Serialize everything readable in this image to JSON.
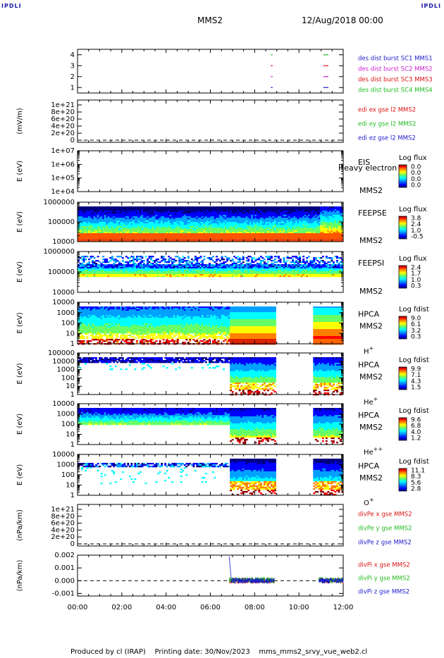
{
  "header": {
    "corner_label": "IPDLI",
    "spacecraft": "MMS2",
    "date_time": "12/Aug/2018 00:00"
  },
  "footer": {
    "producer": "Produced by cl (IRAP)",
    "printing_date": "Printing date: 30/Nov/2023",
    "script_name": "mms_mms2_srvy_vue_web2.cl"
  },
  "x_ticks": [
    "00:00",
    "02:00",
    "04:00",
    "06:00",
    "08:00",
    "10:00",
    "12:00"
  ],
  "colors": {
    "blue": "#1a1acc",
    "magenta": "#cc22cc",
    "red": "#dd1111",
    "green": "#22bb22",
    "colormap": [
      "#00007f",
      "#0000ff",
      "#00a0ff",
      "#00ffff",
      "#66ff66",
      "#ffff00",
      "#ff8000",
      "#ff0000",
      "#8b0000"
    ]
  },
  "chart_data": [
    {
      "type": "line",
      "ylabel": "",
      "yticks": [
        "1",
        "2",
        "3",
        "4"
      ],
      "ylim": [
        0.5,
        4.5
      ],
      "legend": [
        "des dist burst SC1 MMS1",
        "des dist burst SC2 MMS2",
        "des dist burst SC3 MMS3",
        "des dist burst SC4 MMS4"
      ],
      "burst_intervals": [
        [
          8.73,
          8.78
        ],
        [
          11.1,
          11.3
        ]
      ]
    },
    {
      "type": "line",
      "ylabel": "(mV/m)",
      "yticks": [
        "0",
        "2e+20",
        "4e+20",
        "6e+20",
        "8e+20",
        "1e+21"
      ],
      "ylim": [
        0,
        1.1e+21
      ],
      "legend": [
        "edi ex gse l2 MMS2",
        "edi ey gse l2 MMS2",
        "edi ez gse l2 MMS2"
      ]
    },
    {
      "type": "heatmap",
      "ylabel": "E (eV)",
      "yticks": [
        "1e+04",
        "1e+05",
        "1e+06",
        "1e+07"
      ],
      "instrument": "EIS",
      "overlay_text": "Heavy electron to",
      "spacecraft": "MMS2",
      "cb_title": "Log flux",
      "cb_ticks": [
        "0.0",
        "0.0",
        "0.0",
        "0.0"
      ]
    },
    {
      "type": "heatmap",
      "ylabel": "E (eV)",
      "yticks": [
        "10000",
        "100000",
        "1000000"
      ],
      "instrument": "FEEPSE",
      "spacecraft": "MMS2",
      "cb_title": "Log flux",
      "cb_ticks": [
        "3.8",
        "2.4",
        "1.0",
        "-0.5"
      ]
    },
    {
      "type": "heatmap",
      "ylabel": "E (eV)",
      "yticks": [
        "10000",
        "100000",
        "1000000"
      ],
      "instrument": "FEEPSI",
      "spacecraft": "MMS2",
      "cb_title": "Log flux",
      "cb_ticks": [
        "2.4",
        "1.7",
        "1.0",
        "0.3"
      ]
    },
    {
      "type": "heatmap",
      "ylabel": "E (eV)",
      "yticks": [
        "1",
        "10",
        "100",
        "1000",
        "10000"
      ],
      "instrument": "HPCA",
      "spacecraft": "MMS2",
      "species": "H",
      "species_sup": "+",
      "cb_title": "Log fdist",
      "cb_ticks": [
        "9.0",
        "6.1",
        "3.2",
        "0.3"
      ]
    },
    {
      "type": "heatmap",
      "ylabel": "E (eV)",
      "yticks": [
        "1",
        "10",
        "100",
        "1000",
        "10000",
        "100000"
      ],
      "instrument": "HPCA",
      "spacecraft": "MMS2",
      "species": "He",
      "species_sup": "+",
      "cb_title": "Log fdist",
      "cb_ticks": [
        "9.9",
        "7.1",
        "4.3",
        "1.5"
      ]
    },
    {
      "type": "heatmap",
      "ylabel": "E (eV)",
      "yticks": [
        "1",
        "10",
        "100",
        "1000",
        "10000"
      ],
      "instrument": "HPCA",
      "spacecraft": "MMS2",
      "species": "He",
      "species_sup": "++",
      "cb_title": "Log fdist",
      "cb_ticks": [
        "9.6",
        "6.8",
        "4.0",
        "1.2"
      ]
    },
    {
      "type": "heatmap",
      "ylabel": "E (eV)",
      "yticks": [
        "1",
        "10",
        "100",
        "1000",
        "10000"
      ],
      "instrument": "HPCA",
      "spacecraft": "MMS2",
      "species": "O",
      "species_sup": "+",
      "cb_title": "Log fdist",
      "cb_ticks": [
        "11.1",
        "8.3",
        "5.6",
        "2.8"
      ]
    },
    {
      "type": "line",
      "ylabel": "(nPa/km)",
      "yticks": [
        "0",
        "2e+20",
        "4e+20",
        "6e+20",
        "8e+20",
        "1e+21"
      ],
      "ylim": [
        0,
        1.1e+21
      ],
      "legend": [
        "divPe x gse MMS2",
        "divPe y gse MMS2",
        "divPe z gse MMS2"
      ]
    },
    {
      "type": "line",
      "ylabel": "(nPa/km)",
      "yticks": [
        "-0.001",
        "0.000",
        "0.001",
        "0.002"
      ],
      "ylim": [
        -0.0012,
        0.002
      ],
      "legend": [
        "divPi x gse MMS2",
        "divPi y gse MMS2",
        "divPi z gse MMS2"
      ]
    }
  ]
}
